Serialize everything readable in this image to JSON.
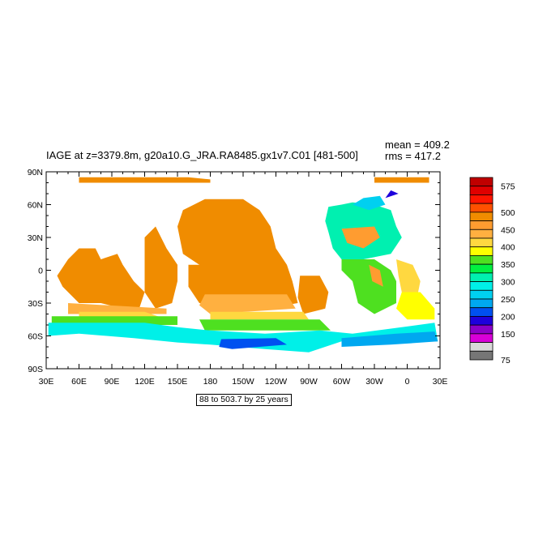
{
  "chart_data": {
    "type": "heatmap",
    "title": "IAGE at z=3379.8m, g20a10.G_JRA.RA8485.gx1v7.C01 [481-500]",
    "stats": {
      "mean": "mean = 409.2",
      "rms": "rms = 417.2"
    },
    "info": "88 to 503.7 by 25 years",
    "x_axis": {
      "ticks": [
        "30E",
        "60E",
        "90E",
        "120E",
        "150E",
        "180",
        "150W",
        "120W",
        "90W",
        "60W",
        "30W",
        "0",
        "30E"
      ],
      "range_deg": [
        30,
        390
      ]
    },
    "y_axis": {
      "ticks": [
        "90N",
        "60N",
        "30N",
        "0",
        "30S",
        "60S",
        "90S"
      ],
      "range_deg": [
        90,
        -90
      ]
    },
    "colorbar": {
      "levels": [
        75,
        100,
        125,
        150,
        175,
        200,
        225,
        250,
        275,
        300,
        325,
        350,
        375,
        400,
        425,
        450,
        475,
        500,
        525,
        550,
        575
      ],
      "labels": [
        "575",
        "500",
        "450",
        "400",
        "350",
        "300",
        "250",
        "200",
        "150",
        "75"
      ],
      "colors": [
        "#767676",
        "#d8d8d8",
        "#d800d8",
        "#8c00c8",
        "#1e00dc",
        "#0050f0",
        "#00a8f0",
        "#00d0f0",
        "#00f0e8",
        "#00f0b0",
        "#00f040",
        "#4ee020",
        "#ffff00",
        "#ffd840",
        "#ffb040",
        "#ff9c30",
        "#f08c00",
        "#ff5000",
        "#ff1400",
        "#e00000",
        "#c00000"
      ]
    },
    "regions": [
      {
        "name": "arctic",
        "value": 475,
        "poly": [
          [
            60,
            85
          ],
          [
            160,
            85
          ],
          [
            180,
            83
          ],
          [
            180,
            80
          ],
          [
            60,
            80
          ]
        ]
      },
      {
        "name": "arctic-east",
        "value": 475,
        "poly": [
          [
            330,
            85
          ],
          [
            380,
            85
          ],
          [
            380,
            80
          ],
          [
            330,
            80
          ]
        ]
      },
      {
        "name": "indian-ocean",
        "value": 475,
        "poly": [
          [
            60,
            20
          ],
          [
            75,
            20
          ],
          [
            80,
            10
          ],
          [
            95,
            15
          ],
          [
            100,
            5
          ],
          [
            110,
            -10
          ],
          [
            120,
            -20
          ],
          [
            115,
            -35
          ],
          [
            100,
            -35
          ],
          [
            80,
            -30
          ],
          [
            60,
            -30
          ],
          [
            45,
            -15
          ],
          [
            40,
            -5
          ],
          [
            50,
            10
          ]
        ]
      },
      {
        "name": "west-pacific",
        "value": 475,
        "poly": [
          [
            120,
            30
          ],
          [
            130,
            40
          ],
          [
            140,
            20
          ],
          [
            150,
            5
          ],
          [
            150,
            -10
          ],
          [
            145,
            -30
          ],
          [
            130,
            -35
          ],
          [
            120,
            -20
          ]
        ]
      },
      {
        "name": "north-pacific",
        "value": 475,
        "poly": [
          [
            150,
            40
          ],
          [
            155,
            55
          ],
          [
            175,
            65
          ],
          [
            210,
            65
          ],
          [
            225,
            55
          ],
          [
            235,
            40
          ],
          [
            240,
            20
          ],
          [
            250,
            5
          ],
          [
            240,
            -5
          ],
          [
            200,
            -5
          ],
          [
            170,
            5
          ],
          [
            155,
            15
          ]
        ]
      },
      {
        "name": "central-pacific",
        "value": 475,
        "poly": [
          [
            160,
            5
          ],
          [
            250,
            5
          ],
          [
            255,
            -10
          ],
          [
            260,
            -30
          ],
          [
            230,
            -35
          ],
          [
            170,
            -30
          ],
          [
            160,
            -15
          ]
        ]
      },
      {
        "name": "east-pacific",
        "value": 475,
        "poly": [
          [
            262,
            -5
          ],
          [
            280,
            -5
          ],
          [
            288,
            -20
          ],
          [
            285,
            -35
          ],
          [
            265,
            -40
          ],
          [
            260,
            -25
          ]
        ]
      },
      {
        "name": "indian-south",
        "value": 425,
        "poly": [
          [
            50,
            -30
          ],
          [
            140,
            -35
          ],
          [
            140,
            -40
          ],
          [
            50,
            -40
          ]
        ]
      },
      {
        "name": "pacific-south",
        "value": 425,
        "poly": [
          [
            175,
            -22
          ],
          [
            250,
            -22
          ],
          [
            258,
            -35
          ],
          [
            180,
            -40
          ],
          [
            170,
            -32
          ]
        ]
      },
      {
        "name": "s-belt-yellow",
        "value": 400,
        "poly": [
          [
            60,
            -38
          ],
          [
            120,
            -38
          ],
          [
            135,
            -43
          ],
          [
            60,
            -45
          ]
        ]
      },
      {
        "name": "s-pacific-yellow",
        "value": 400,
        "poly": [
          [
            180,
            -38
          ],
          [
            265,
            -38
          ],
          [
            270,
            -45
          ],
          [
            180,
            -45
          ]
        ]
      },
      {
        "name": "s-belt-green",
        "value": 350,
        "poly": [
          [
            35,
            -42
          ],
          [
            150,
            -42
          ],
          [
            150,
            -50
          ],
          [
            35,
            -50
          ]
        ]
      },
      {
        "name": "s-pacific-green",
        "value": 350,
        "poly": [
          [
            170,
            -45
          ],
          [
            280,
            -45
          ],
          [
            290,
            -55
          ],
          [
            175,
            -55
          ]
        ]
      },
      {
        "name": "southern-ocean",
        "value": 275,
        "poly": [
          [
            32,
            -48
          ],
          [
            120,
            -48
          ],
          [
            150,
            -52
          ],
          [
            180,
            -55
          ],
          [
            230,
            -58
          ],
          [
            280,
            -55
          ],
          [
            310,
            -58
          ],
          [
            355,
            -52
          ],
          [
            385,
            -48
          ],
          [
            388,
            -65
          ],
          [
            300,
            -65
          ],
          [
            270,
            -75
          ],
          [
            230,
            -72
          ],
          [
            180,
            -68
          ],
          [
            150,
            -66
          ],
          [
            110,
            -62
          ],
          [
            60,
            -58
          ],
          [
            32,
            -60
          ]
        ]
      },
      {
        "name": "deep-blue",
        "value": 200,
        "poly": [
          [
            190,
            -63
          ],
          [
            240,
            -62
          ],
          [
            250,
            -68
          ],
          [
            200,
            -72
          ],
          [
            188,
            -70
          ]
        ]
      },
      {
        "name": "weddell-blue",
        "value": 225,
        "poly": [
          [
            300,
            -62
          ],
          [
            350,
            -58
          ],
          [
            385,
            -56
          ],
          [
            388,
            -65
          ],
          [
            345,
            -68
          ],
          [
            300,
            -70
          ]
        ]
      },
      {
        "name": "atlantic-n",
        "value": 300,
        "poly": [
          [
            288,
            58
          ],
          [
            300,
            60
          ],
          [
            310,
            62
          ],
          [
            330,
            60
          ],
          [
            345,
            55
          ],
          [
            350,
            40
          ],
          [
            355,
            30
          ],
          [
            345,
            15
          ],
          [
            320,
            10
          ],
          [
            300,
            10
          ],
          [
            292,
            20
          ],
          [
            288,
            35
          ],
          [
            285,
            45
          ]
        ]
      },
      {
        "name": "atlantic-mid",
        "value": 350,
        "poly": [
          [
            300,
            10
          ],
          [
            330,
            10
          ],
          [
            345,
            0
          ],
          [
            350,
            -10
          ],
          [
            350,
            -30
          ],
          [
            330,
            -40
          ],
          [
            315,
            -30
          ],
          [
            310,
            -10
          ],
          [
            300,
            0
          ]
        ]
      },
      {
        "name": "atlantic-yellow",
        "value": 400,
        "poly": [
          [
            350,
            10
          ],
          [
            365,
            5
          ],
          [
            372,
            -10
          ],
          [
            368,
            -30
          ],
          [
            355,
            -20
          ],
          [
            352,
            -5
          ]
        ]
      },
      {
        "name": "atlantic-orange",
        "value": 450,
        "poly": [
          [
            300,
            38
          ],
          [
            330,
            40
          ],
          [
            335,
            30
          ],
          [
            320,
            20
          ],
          [
            305,
            25
          ]
        ]
      },
      {
        "name": "atlantic-orange-2",
        "value": 450,
        "poly": [
          [
            325,
            5
          ],
          [
            335,
            0
          ],
          [
            338,
            -15
          ],
          [
            328,
            -10
          ]
        ]
      },
      {
        "name": "atlantic-east",
        "value": 375,
        "poly": [
          [
            355,
            -20
          ],
          [
            372,
            -20
          ],
          [
            385,
            -35
          ],
          [
            385,
            -45
          ],
          [
            360,
            -45
          ],
          [
            350,
            -35
          ]
        ]
      },
      {
        "name": "labrador",
        "value": 250,
        "poly": [
          [
            310,
            60
          ],
          [
            320,
            66
          ],
          [
            335,
            68
          ],
          [
            340,
            60
          ],
          [
            325,
            55
          ]
        ]
      },
      {
        "name": "nordic",
        "value": 175,
        "poly": [
          [
            340,
            66
          ],
          [
            352,
            70
          ],
          [
            345,
            73
          ]
        ]
      }
    ]
  }
}
